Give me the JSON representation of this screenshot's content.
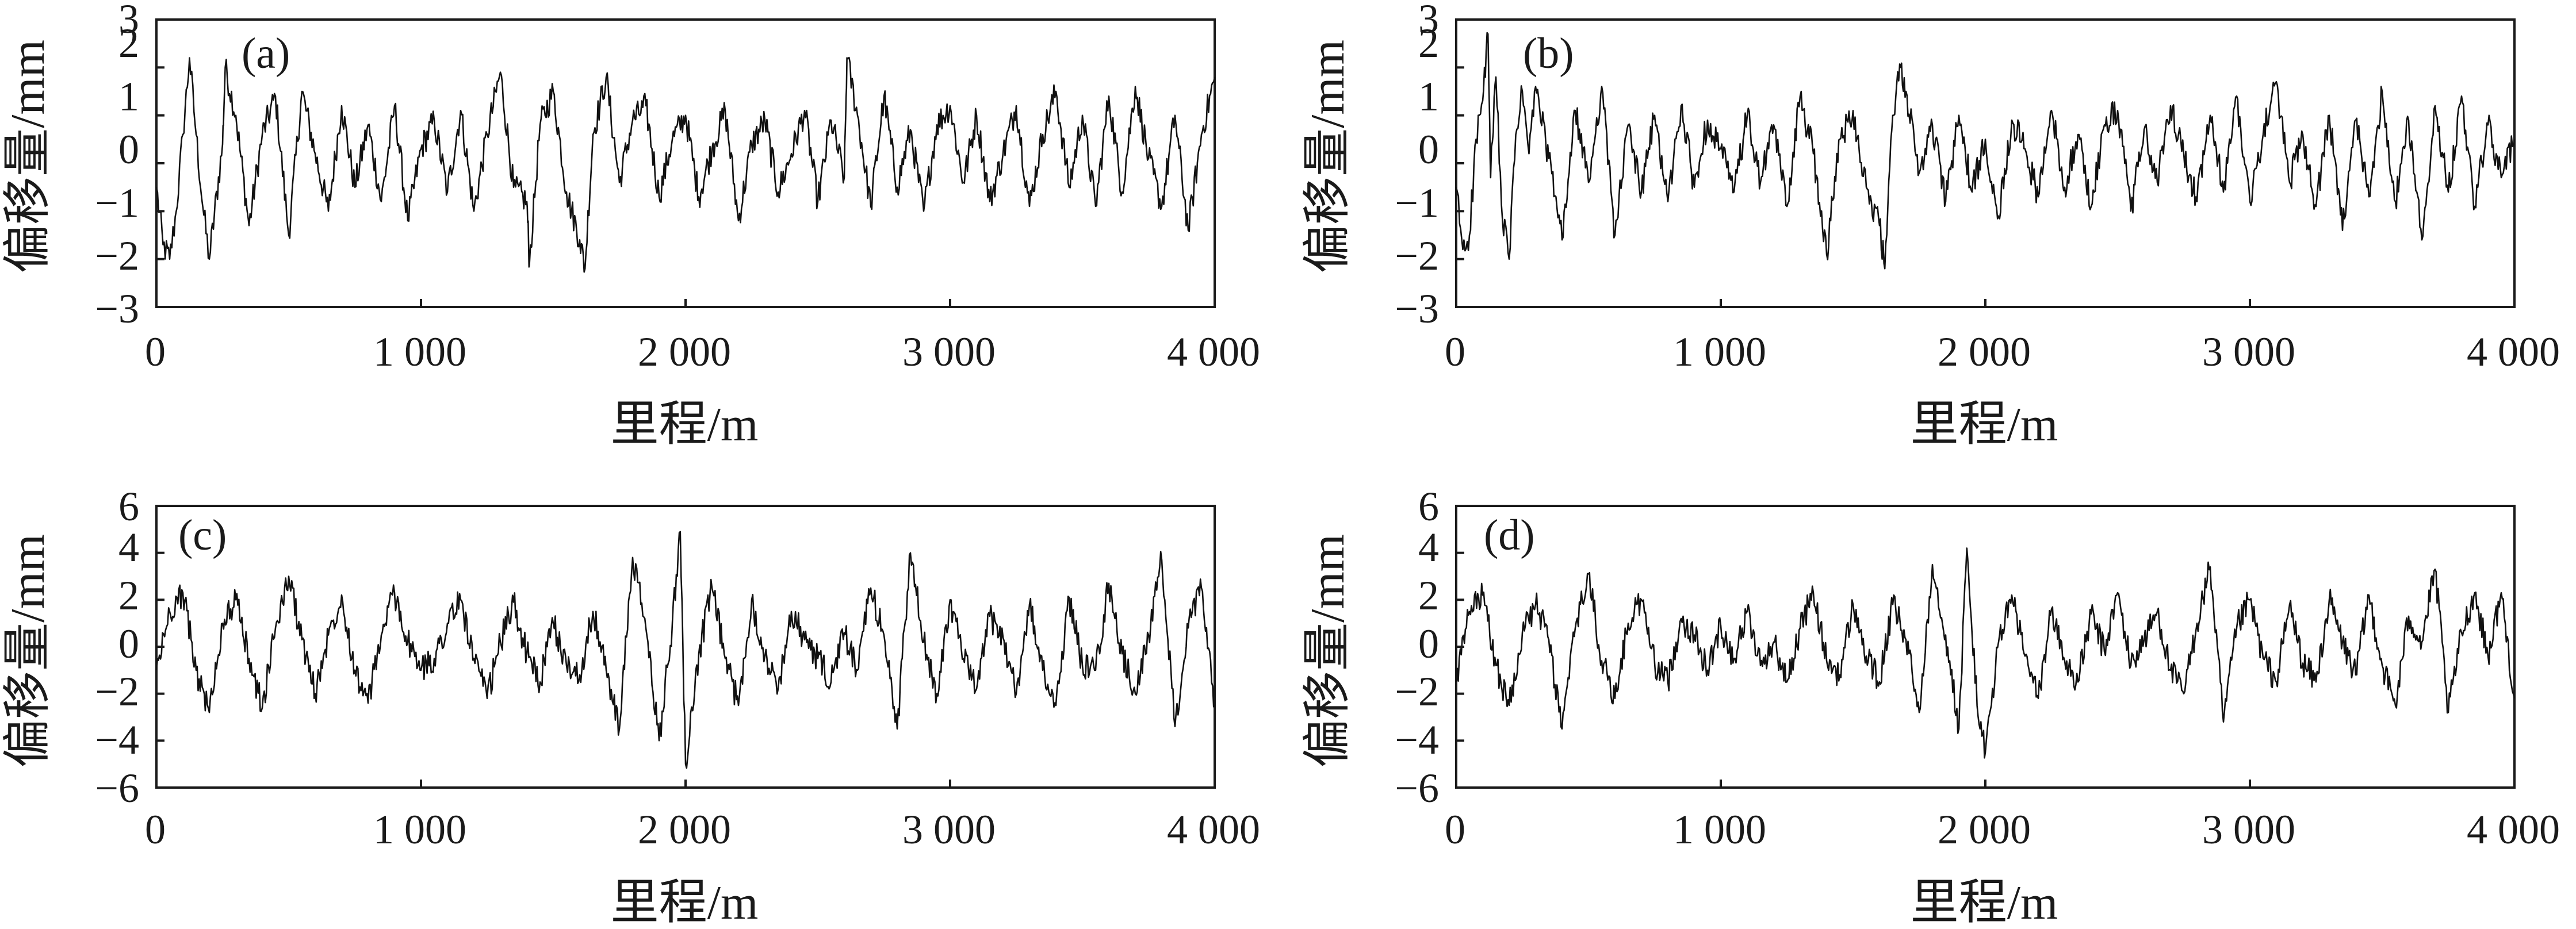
{
  "chart_data": [
    {
      "type": "line",
      "panel_label": "(a)",
      "xlabel": "里程/m",
      "ylabel": "偏移量/mm",
      "xlim": [
        0,
        4000
      ],
      "ylim": [
        -3,
        3
      ],
      "xticks": [
        0,
        1000,
        2000,
        3000,
        4000
      ],
      "xtick_labels": [
        "0",
        "1 000",
        "2 000",
        "3 000",
        "4 000"
      ],
      "yticks": [
        -3,
        -2,
        -1,
        0,
        1,
        2,
        3
      ],
      "ytick_labels": [
        "−3",
        "−2",
        "−1",
        "0",
        "1",
        "2",
        "3"
      ],
      "grid": false,
      "series": [
        {
          "x": [
            0,
            25,
            50,
            75,
            100,
            125,
            150,
            175,
            200,
            250,
            260,
            300,
            350,
            400,
            450,
            500,
            550,
            600,
            650,
            700,
            750,
            800,
            850,
            900,
            950,
            1000,
            1050,
            1100,
            1150,
            1200,
            1250,
            1300,
            1350,
            1400,
            1410,
            1450,
            1500,
            1550,
            1600,
            1620,
            1650,
            1700,
            1750,
            1800,
            1850,
            1900,
            1950,
            2000,
            2050,
            2100,
            2150,
            2200,
            2250,
            2300,
            2350,
            2400,
            2450,
            2500,
            2550,
            2600,
            2610,
            2650,
            2700,
            2750,
            2800,
            2850,
            2900,
            2950,
            3000,
            3050,
            3100,
            3150,
            3200,
            3250,
            3300,
            3350,
            3400,
            3450,
            3500,
            3550,
            3600,
            3650,
            3700,
            3750,
            3800,
            3850,
            3900,
            3950,
            4000
          ],
          "y": [
            -0.5,
            -1.7,
            -2.0,
            -1.0,
            0.6,
            2.2,
            0.6,
            -0.9,
            -2.0,
            0.4,
            2.0,
            1.0,
            -1.3,
            0.6,
            1.4,
            -1.5,
            1.5,
            0.2,
            -1.0,
            1.2,
            -0.5,
            0.8,
            -0.8,
            1.2,
            -1.2,
            0.3,
            0.9,
            -0.6,
            1.1,
            -1.0,
            0.6,
            1.9,
            -0.5,
            -0.8,
            -2.1,
            0.8,
            1.5,
            -0.6,
            -1.6,
            -2.2,
            0.6,
            1.8,
            -0.4,
            0.9,
            1.2,
            -0.7,
            0.5,
            1.0,
            -0.7,
            0.3,
            1.1,
            -1.2,
            0.4,
            0.9,
            -0.6,
            0.2,
            1.1,
            -0.8,
            0.9,
            -0.3,
            2.2,
            1.0,
            -0.9,
            1.4,
            -0.5,
            0.7,
            -1.0,
            0.8,
            1.2,
            -0.4,
            1.0,
            -0.8,
            0.2,
            1.2,
            -0.9,
            0.6,
            1.5,
            -0.5,
            1.0,
            -0.9,
            1.4,
            -0.6,
            1.6,
            0.1,
            -0.9,
            1.0,
            -1.4,
            0.6,
            1.8
          ]
        }
      ]
    },
    {
      "type": "line",
      "panel_label": "(b)",
      "xlabel": "里程/m",
      "ylabel": "偏移量/mm",
      "xlim": [
        0,
        4000
      ],
      "ylim": [
        -3,
        3
      ],
      "xticks": [
        0,
        1000,
        2000,
        3000,
        4000
      ],
      "xtick_labels": [
        "0",
        "1 000",
        "2 000",
        "3 000",
        "4 000"
      ],
      "yticks": [
        -3,
        -2,
        -1,
        0,
        1,
        2,
        3
      ],
      "ytick_labels": [
        "−3",
        "−2",
        "−1",
        "0",
        "1",
        "2",
        "3"
      ],
      "grid": false,
      "series": [
        {
          "x": [
            0,
            25,
            50,
            75,
            100,
            120,
            130,
            150,
            175,
            200,
            225,
            250,
            275,
            300,
            350,
            400,
            450,
            500,
            550,
            600,
            650,
            700,
            750,
            800,
            850,
            900,
            950,
            1000,
            1050,
            1100,
            1150,
            1200,
            1250,
            1300,
            1350,
            1400,
            1450,
            1500,
            1550,
            1600,
            1620,
            1650,
            1680,
            1700,
            1750,
            1800,
            1850,
            1900,
            1950,
            2000,
            2050,
            2100,
            2150,
            2200,
            2250,
            2300,
            2350,
            2400,
            2450,
            2500,
            2550,
            2600,
            2650,
            2700,
            2750,
            2800,
            2850,
            2900,
            2950,
            3000,
            3050,
            3100,
            3150,
            3200,
            3250,
            3300,
            3350,
            3400,
            3450,
            3500,
            3550,
            3600,
            3650,
            3700,
            3750,
            3800,
            3850,
            3900,
            3950,
            4000
          ],
          "y": [
            -0.5,
            -1.8,
            -1.5,
            0.5,
            1.3,
            2.7,
            -0.3,
            1.8,
            -1.2,
            -2.0,
            0.6,
            1.5,
            0.2,
            1.6,
            0.1,
            -1.6,
            1.1,
            -0.4,
            1.6,
            -1.5,
            0.8,
            -0.6,
            1.0,
            -0.8,
            1.2,
            -0.5,
            0.9,
            0.3,
            -0.6,
            1.0,
            -0.4,
            0.8,
            -0.9,
            1.4,
            0.2,
            -1.9,
            0.5,
            1.1,
            -0.5,
            -1.3,
            -2.2,
            1.0,
            2.0,
            1.5,
            -0.2,
            0.8,
            -0.8,
            1.0,
            -0.6,
            0.5,
            -1.1,
            0.9,
            0.3,
            -0.7,
            1.1,
            -0.5,
            0.6,
            -0.9,
            0.8,
            1.1,
            -1.0,
            0.7,
            -0.4,
            1.2,
            0.2,
            -0.8,
            1.0,
            -0.6,
            1.4,
            -0.8,
            0.6,
            1.7,
            -0.4,
            0.6,
            -0.9,
            1.0,
            -1.4,
            0.9,
            -0.7,
            1.5,
            -0.8,
            0.9,
            -1.6,
            1.2,
            -0.6,
            1.4,
            -0.9,
            0.8,
            -0.3,
            0.5
          ]
        }
      ]
    },
    {
      "type": "line",
      "panel_label": "(c)",
      "xlabel": "里程/m",
      "ylabel": "偏移量/mm",
      "xlim": [
        0,
        4000
      ],
      "ylim": [
        -6,
        6
      ],
      "xticks": [
        0,
        1000,
        2000,
        3000,
        4000
      ],
      "xtick_labels": [
        "0",
        "1 000",
        "2 000",
        "3 000",
        "4 000"
      ],
      "yticks": [
        -6,
        -4,
        -2,
        0,
        2,
        4,
        6
      ],
      "ytick_labels": [
        "−6",
        "−4",
        "−2",
        "0",
        "2",
        "4",
        "6"
      ],
      "grid": false,
      "series": [
        {
          "x": [
            0,
            50,
            100,
            150,
            200,
            250,
            300,
            350,
            400,
            450,
            500,
            550,
            600,
            650,
            700,
            750,
            800,
            850,
            900,
            950,
            1000,
            1050,
            1100,
            1150,
            1200,
            1250,
            1300,
            1350,
            1400,
            1450,
            1500,
            1550,
            1600,
            1650,
            1700,
            1750,
            1800,
            1850,
            1900,
            1950,
            1980,
            2000,
            2050,
            2100,
            2150,
            2200,
            2250,
            2300,
            2350,
            2400,
            2450,
            2500,
            2550,
            2600,
            2650,
            2700,
            2750,
            2800,
            2850,
            2900,
            2950,
            3000,
            3050,
            3100,
            3150,
            3200,
            3250,
            3300,
            3350,
            3400,
            3450,
            3500,
            3550,
            3600,
            3650,
            3700,
            3750,
            3800,
            3850,
            3900,
            3950,
            4000
          ],
          "y": [
            -1.0,
            1.5,
            2.3,
            -1.0,
            -2.8,
            1.0,
            2.0,
            -0.5,
            -2.6,
            0.8,
            3.0,
            0.3,
            -2.0,
            0.5,
            2.2,
            -1.0,
            -2.4,
            0.5,
            2.3,
            0.2,
            -1.0,
            -0.5,
            1.0,
            2.0,
            -0.5,
            -2.2,
            0.2,
            1.9,
            -0.3,
            -1.5,
            1.0,
            -0.8,
            -1.2,
            1.5,
            -1.0,
            -3.5,
            3.8,
            0.8,
            -4.0,
            1.0,
            4.9,
            -5.0,
            -0.3,
            2.5,
            -0.5,
            -2.5,
            2.0,
            -0.4,
            -1.8,
            1.5,
            0.3,
            -0.5,
            -1.5,
            0.6,
            -1.0,
            2.5,
            0.5,
            -3.5,
            4.0,
            0.2,
            -2.0,
            2.0,
            -0.5,
            -1.8,
            1.3,
            0.4,
            -2.0,
            1.8,
            -1.0,
            -2.5,
            2.1,
            -0.8,
            -1.0,
            2.7,
            -0.3,
            -2.0,
            0.5,
            3.7,
            -3.4,
            0.8,
            2.5,
            -2.5
          ]
        }
      ]
    },
    {
      "type": "line",
      "panel_label": "(d)",
      "xlabel": "里程/m",
      "ylabel": "偏移量/mm",
      "xlim": [
        0,
        4000
      ],
      "ylim": [
        -6,
        6
      ],
      "xticks": [
        0,
        1000,
        2000,
        3000,
        4000
      ],
      "xtick_labels": [
        "0",
        "1 000",
        "2 000",
        "3 000",
        "4 000"
      ],
      "yticks": [
        -6,
        -4,
        -2,
        0,
        2,
        4,
        6
      ],
      "ytick_labels": [
        "−6",
        "−4",
        "−2",
        "0",
        "2",
        "4",
        "6"
      ],
      "grid": false,
      "series": [
        {
          "x": [
            0,
            50,
            100,
            150,
            200,
            250,
            300,
            350,
            400,
            450,
            500,
            550,
            600,
            650,
            700,
            750,
            800,
            850,
            900,
            950,
            1000,
            1050,
            1100,
            1150,
            1200,
            1250,
            1300,
            1350,
            1400,
            1450,
            1500,
            1550,
            1600,
            1650,
            1700,
            1750,
            1800,
            1850,
            1900,
            1930,
            1950,
            1980,
            2000,
            2050,
            2100,
            2150,
            2200,
            2250,
            2300,
            2350,
            2400,
            2450,
            2500,
            2550,
            2600,
            2650,
            2700,
            2750,
            2800,
            2850,
            2900,
            2950,
            3000,
            3050,
            3100,
            3150,
            3200,
            3250,
            3300,
            3350,
            3400,
            3450,
            3500,
            3550,
            3600,
            3650,
            3700,
            3750,
            3800,
            3850,
            3900,
            3950,
            4000
          ],
          "y": [
            -1.5,
            1.5,
            2.2,
            -0.8,
            -2.5,
            0.6,
            1.8,
            0.3,
            -3.5,
            0.8,
            3.1,
            -0.6,
            -2.2,
            1.0,
            2.0,
            -0.7,
            -1.5,
            1.2,
            0.5,
            -1.0,
            0.9,
            -0.5,
            1.5,
            -0.8,
            0.2,
            -1.5,
            0.8,
            2.3,
            -0.6,
            -1.2,
            1.8,
            -0.4,
            -1.5,
            1.8,
            0.3,
            -2.8,
            3.5,
            0.5,
            -3.5,
            4.2,
            0.5,
            -3.5,
            -4.5,
            0.2,
            2.2,
            -0.4,
            -2.2,
            1.6,
            -0.6,
            -1.5,
            1.4,
            -0.2,
            2.3,
            -0.8,
            0.3,
            1.5,
            -1.0,
            -2.0,
            1.0,
            3.4,
            -3.2,
            0.8,
            2.0,
            -0.5,
            -1.5,
            1.8,
            -0.7,
            -1.5,
            2.0,
            0.2,
            -1.2,
            2.2,
            -0.8,
            -2.5,
            1.3,
            0.2,
            3.3,
            -2.8,
            0.6,
            2.3,
            -0.4,
            2.3,
            -2.2
          ]
        }
      ]
    }
  ]
}
